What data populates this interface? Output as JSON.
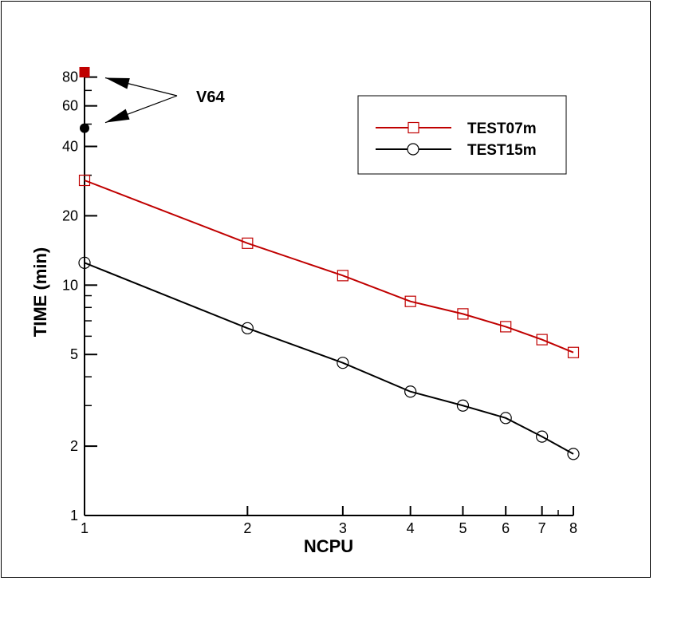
{
  "chart_data": {
    "type": "line",
    "x_scale": "log",
    "y_scale": "log",
    "xlabel": "NCPU",
    "ylabel": "TIME (min)",
    "xlim": [
      1,
      8
    ],
    "ylim": [
      1,
      85
    ],
    "x_ticks": [
      1,
      2,
      3,
      4,
      5,
      6,
      7,
      8
    ],
    "y_ticks": [
      1,
      2,
      5,
      10,
      20,
      40,
      60,
      80
    ],
    "y_minor_ticks": [
      3,
      4,
      6,
      7,
      8,
      9,
      30,
      50,
      70
    ],
    "x": [
      1,
      2,
      3,
      4,
      5,
      6,
      7,
      8
    ],
    "grid": false,
    "legend_position": "top-right",
    "series": [
      {
        "name": "TEST07m",
        "color": "#c00000",
        "marker": "square-open",
        "values": [
          28.5,
          15.2,
          11.0,
          8.5,
          7.5,
          6.6,
          5.8,
          5.1
        ]
      },
      {
        "name": "TEST15m",
        "color": "#000000",
        "marker": "circle-open",
        "values": [
          12.5,
          6.5,
          4.6,
          3.45,
          3.0,
          2.65,
          2.2,
          1.85
        ]
      }
    ],
    "reference_points": [
      {
        "x": 1,
        "y": 84,
        "color": "#c00000",
        "marker": "square-filled",
        "series": "TEST07m"
      },
      {
        "x": 1,
        "y": 48,
        "color": "#000000",
        "marker": "circle-filled",
        "series": "TEST15m"
      }
    ],
    "annotation": {
      "text": "V64",
      "arrows_to": "reference_points"
    }
  }
}
